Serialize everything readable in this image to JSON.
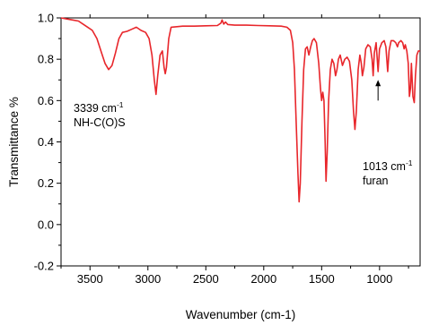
{
  "chart_data": {
    "type": "line",
    "xlabel": "Wavenumber (cm-1)",
    "ylabel": "Transmittance %",
    "xlim": [
      3750,
      650
    ],
    "ylim": [
      -0.2,
      1.0
    ],
    "x_reversed": true,
    "grid": false,
    "legend": "none",
    "x_ticks": [
      3500,
      3000,
      2500,
      2000,
      1500,
      1000
    ],
    "x_tick_labels": [
      "3500",
      "3000",
      "2500",
      "2000",
      "1500",
      "1000"
    ],
    "y_ticks": [
      -0.2,
      0.0,
      0.2,
      0.4,
      0.6,
      0.8,
      1.0
    ],
    "y_tick_labels": [
      "-0.2",
      "0.0",
      "0.2",
      "0.4",
      "0.6",
      "0.8",
      "1.0"
    ],
    "series": [
      {
        "color": "#e8262b",
        "points": [
          [
            3750,
            1.0
          ],
          [
            3700,
            0.995
          ],
          [
            3650,
            0.99
          ],
          [
            3600,
            0.985
          ],
          [
            3560,
            0.97
          ],
          [
            3520,
            0.955
          ],
          [
            3480,
            0.94
          ],
          [
            3440,
            0.9
          ],
          [
            3400,
            0.83
          ],
          [
            3370,
            0.78
          ],
          [
            3339,
            0.75
          ],
          [
            3310,
            0.77
          ],
          [
            3280,
            0.83
          ],
          [
            3250,
            0.9
          ],
          [
            3220,
            0.93
          ],
          [
            3180,
            0.935
          ],
          [
            3140,
            0.945
          ],
          [
            3100,
            0.955
          ],
          [
            3060,
            0.94
          ],
          [
            3020,
            0.93
          ],
          [
            2990,
            0.9
          ],
          [
            2965,
            0.82
          ],
          [
            2945,
            0.7
          ],
          [
            2930,
            0.63
          ],
          [
            2915,
            0.72
          ],
          [
            2895,
            0.82
          ],
          [
            2875,
            0.84
          ],
          [
            2860,
            0.76
          ],
          [
            2850,
            0.73
          ],
          [
            2840,
            0.76
          ],
          [
            2820,
            0.9
          ],
          [
            2800,
            0.955
          ],
          [
            2700,
            0.96
          ],
          [
            2600,
            0.96
          ],
          [
            2500,
            0.962
          ],
          [
            2400,
            0.963
          ],
          [
            2370,
            0.975
          ],
          [
            2360,
            0.99
          ],
          [
            2345,
            0.97
          ],
          [
            2330,
            0.98
          ],
          [
            2310,
            0.968
          ],
          [
            2250,
            0.965
          ],
          [
            2150,
            0.965
          ],
          [
            2050,
            0.963
          ],
          [
            1950,
            0.962
          ],
          [
            1850,
            0.96
          ],
          [
            1800,
            0.955
          ],
          [
            1770,
            0.94
          ],
          [
            1750,
            0.88
          ],
          [
            1735,
            0.75
          ],
          [
            1720,
            0.5
          ],
          [
            1705,
            0.25
          ],
          [
            1695,
            0.11
          ],
          [
            1685,
            0.2
          ],
          [
            1670,
            0.5
          ],
          [
            1655,
            0.75
          ],
          [
            1640,
            0.85
          ],
          [
            1625,
            0.86
          ],
          [
            1610,
            0.82
          ],
          [
            1595,
            0.86
          ],
          [
            1580,
            0.89
          ],
          [
            1565,
            0.9
          ],
          [
            1545,
            0.88
          ],
          [
            1525,
            0.78
          ],
          [
            1510,
            0.66
          ],
          [
            1500,
            0.6
          ],
          [
            1490,
            0.64
          ],
          [
            1480,
            0.6
          ],
          [
            1470,
            0.4
          ],
          [
            1462,
            0.21
          ],
          [
            1452,
            0.35
          ],
          [
            1440,
            0.6
          ],
          [
            1425,
            0.75
          ],
          [
            1410,
            0.8
          ],
          [
            1395,
            0.78
          ],
          [
            1380,
            0.72
          ],
          [
            1368,
            0.75
          ],
          [
            1355,
            0.8
          ],
          [
            1340,
            0.82
          ],
          [
            1320,
            0.77
          ],
          [
            1300,
            0.8
          ],
          [
            1280,
            0.81
          ],
          [
            1260,
            0.79
          ],
          [
            1240,
            0.7
          ],
          [
            1225,
            0.55
          ],
          [
            1213,
            0.46
          ],
          [
            1200,
            0.55
          ],
          [
            1185,
            0.75
          ],
          [
            1170,
            0.82
          ],
          [
            1158,
            0.78
          ],
          [
            1148,
            0.72
          ],
          [
            1135,
            0.76
          ],
          [
            1120,
            0.85
          ],
          [
            1100,
            0.87
          ],
          [
            1080,
            0.86
          ],
          [
            1065,
            0.8
          ],
          [
            1055,
            0.72
          ],
          [
            1045,
            0.83
          ],
          [
            1030,
            0.88
          ],
          [
            1013,
            0.74
          ],
          [
            1000,
            0.85
          ],
          [
            980,
            0.88
          ],
          [
            960,
            0.89
          ],
          [
            945,
            0.86
          ],
          [
            930,
            0.74
          ],
          [
            918,
            0.84
          ],
          [
            900,
            0.89
          ],
          [
            880,
            0.89
          ],
          [
            860,
            0.88
          ],
          [
            845,
            0.86
          ],
          [
            835,
            0.88
          ],
          [
            815,
            0.89
          ],
          [
            800,
            0.88
          ],
          [
            788,
            0.85
          ],
          [
            778,
            0.87
          ],
          [
            765,
            0.84
          ],
          [
            752,
            0.78
          ],
          [
            742,
            0.62
          ],
          [
            733,
            0.66
          ],
          [
            725,
            0.78
          ],
          [
            712,
            0.62
          ],
          [
            700,
            0.59
          ],
          [
            690,
            0.72
          ],
          [
            678,
            0.82
          ],
          [
            665,
            0.84
          ],
          [
            650,
            0.84
          ]
        ]
      }
    ],
    "annotations": [
      {
        "name": "nh-annotation",
        "lines": [
          {
            "main": "3339 cm",
            "sup": "-1"
          },
          {
            "main": "NH-C(O)S",
            "sup": ""
          }
        ],
        "x": 3339
      },
      {
        "name": "furan-annotation",
        "lines": [
          {
            "main": "1013 cm",
            "sup": "-1"
          },
          {
            "main": "furan",
            "sup": ""
          }
        ],
        "x": 1013,
        "arrow_from_y": 0.6,
        "arrow_to_y": 0.7
      }
    ]
  }
}
